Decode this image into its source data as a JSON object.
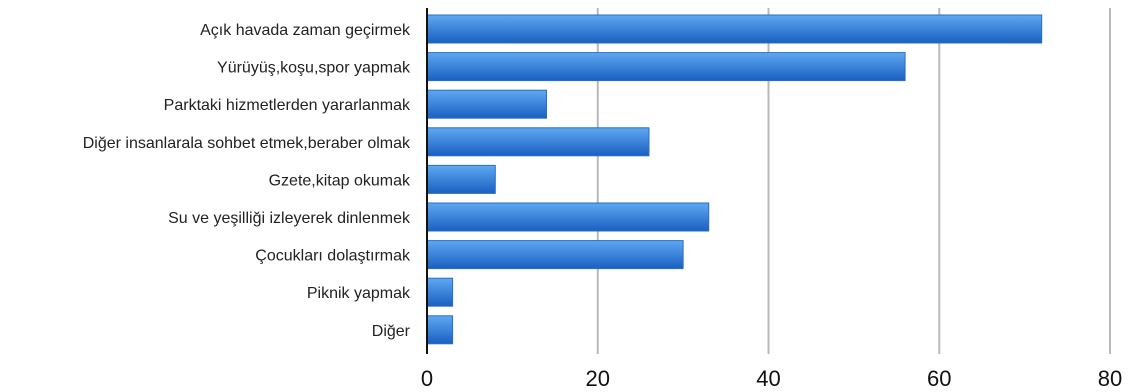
{
  "chart_data": {
    "type": "bar",
    "orientation": "horizontal",
    "categories": [
      "Açık havada zaman geçirmek",
      "Yürüyüş,koşu,spor yapmak",
      "Parktaki hizmetlerden yararlanmak",
      "Diğer insanlarala sohbet etmek,beraber olmak",
      "Gzete,kitap okumak",
      "Su ve yeşilliği izleyerek dinlenmek",
      "Çocukları dolaştırmak",
      "Piknik yapmak",
      "Diğer"
    ],
    "values": [
      72,
      56,
      14,
      26,
      8,
      33,
      30,
      3,
      3
    ],
    "xlim": [
      0,
      80
    ],
    "x_ticks": [
      "0",
      "20",
      "40",
      "60",
      "80"
    ],
    "grid": "vertical",
    "legend": "none",
    "bar_color_top": "#5ea8f2",
    "bar_color_bottom": "#1a5fc0"
  }
}
